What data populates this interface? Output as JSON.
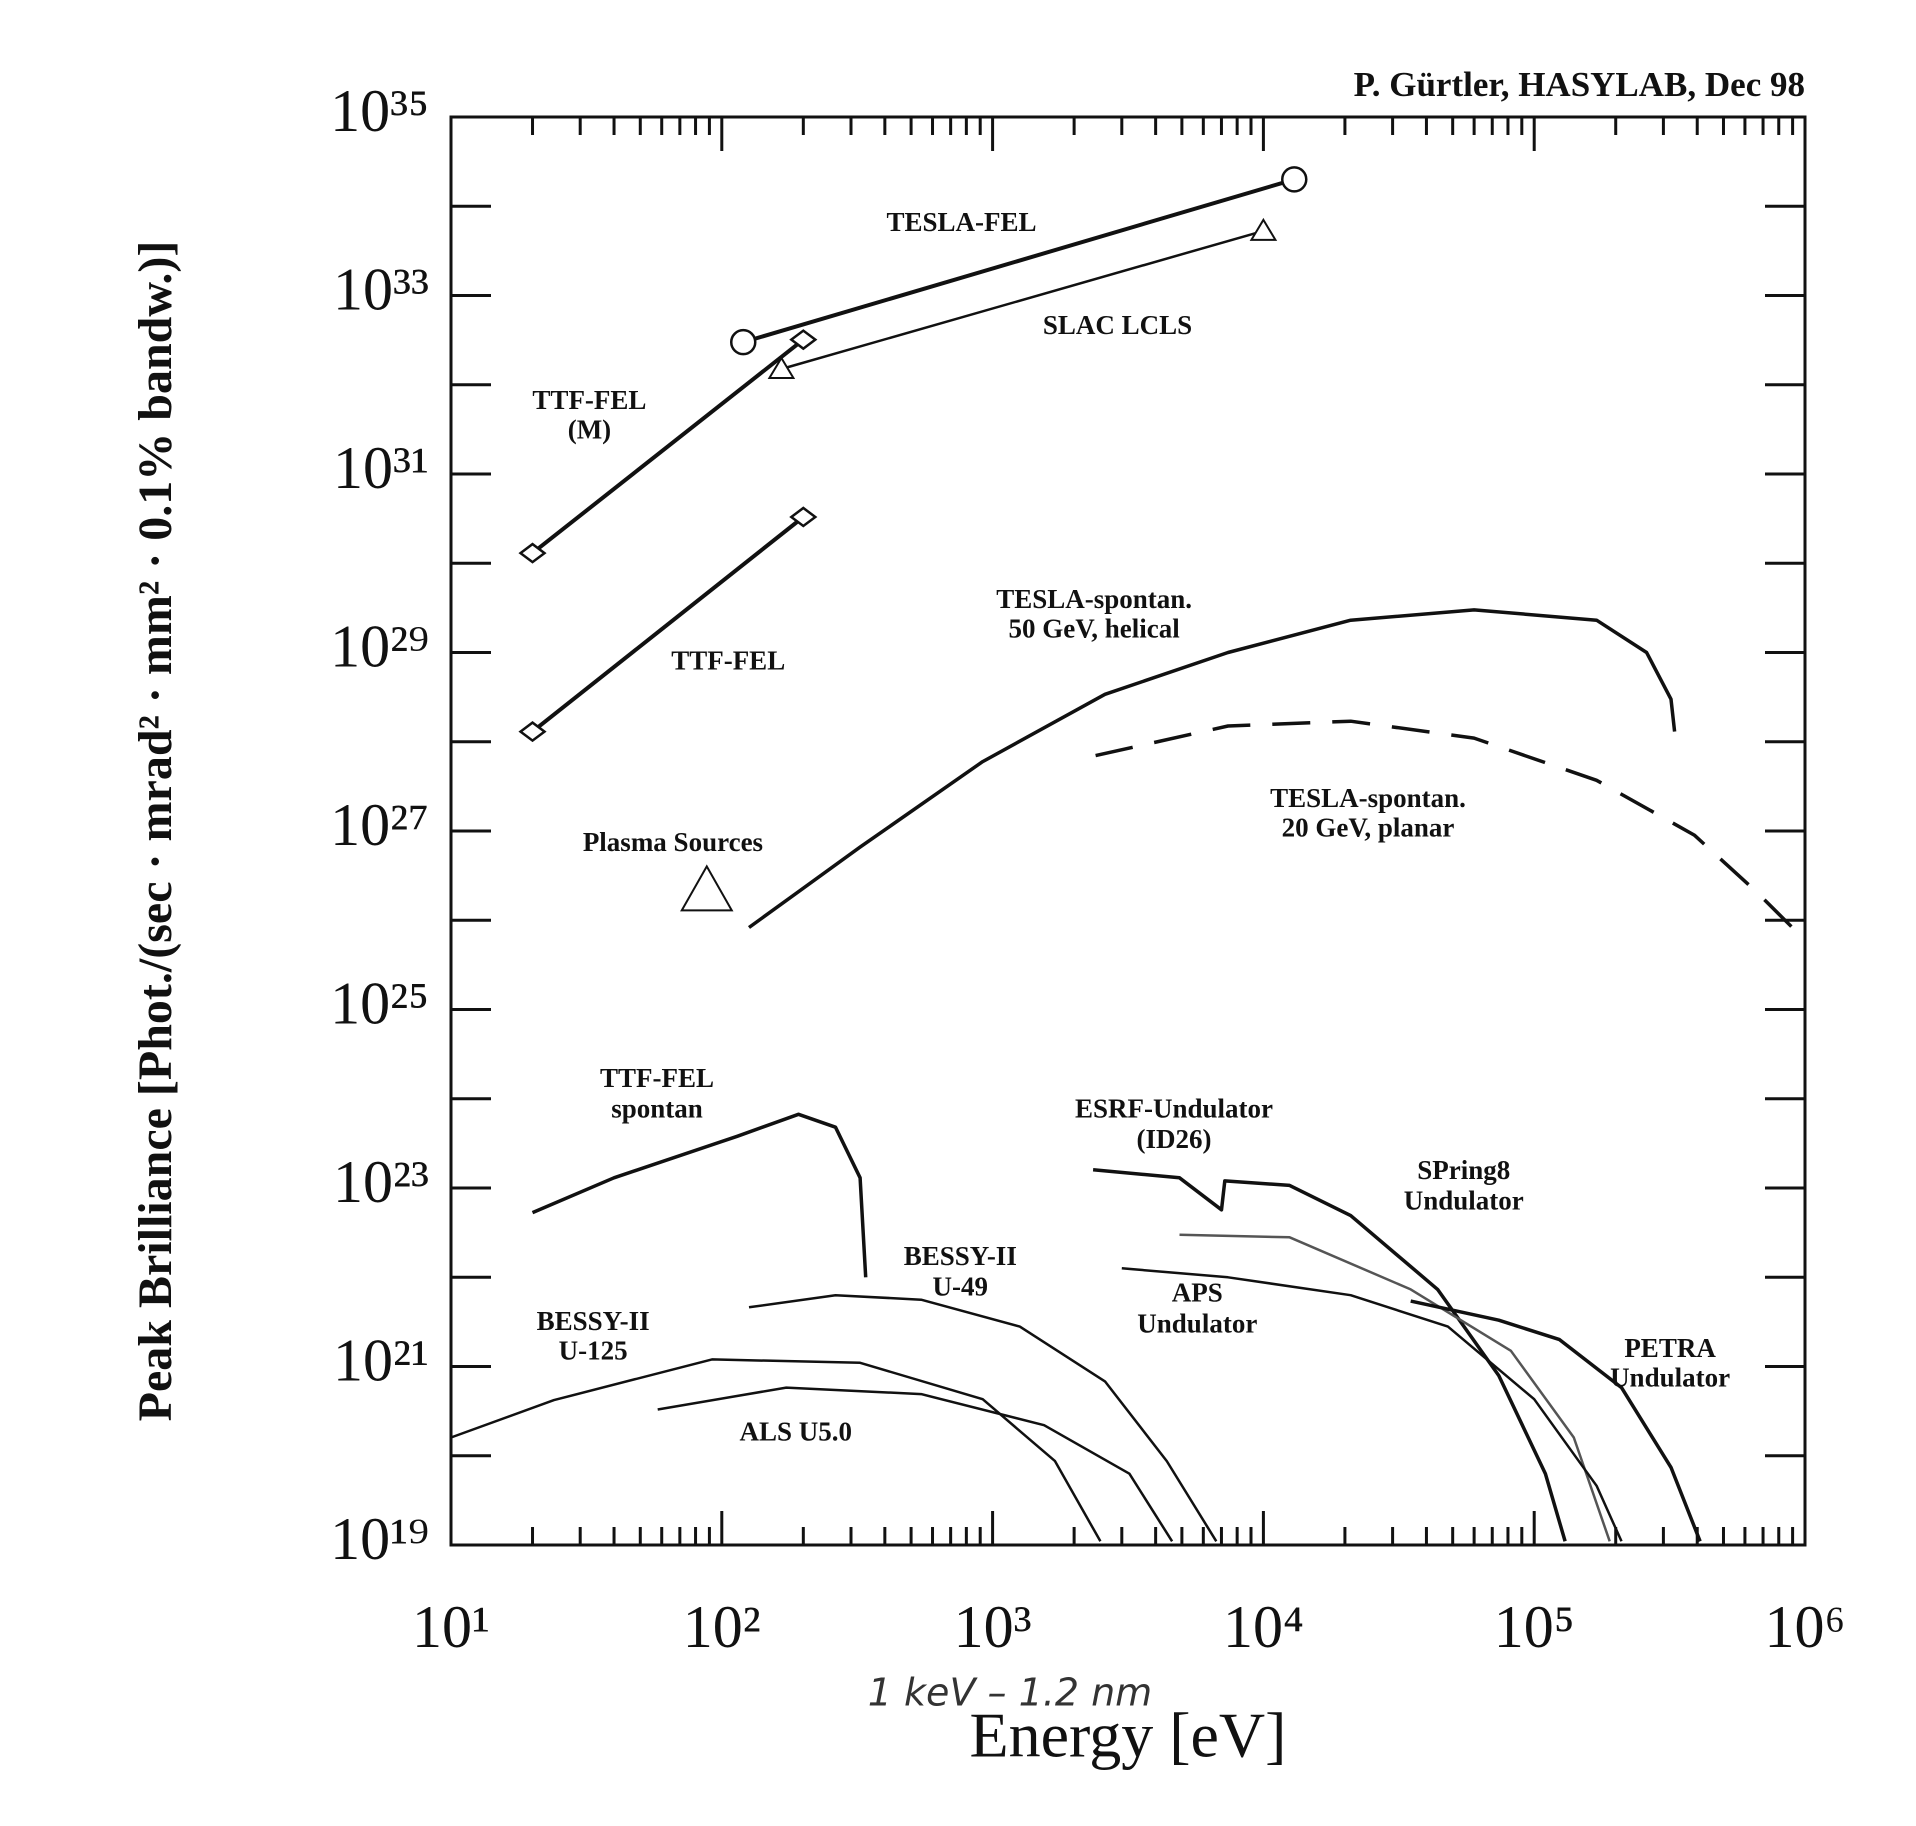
{
  "chart_data": {
    "type": "line",
    "log_x": true,
    "log_y": true,
    "credit": "P. Gürtler, HASYLAB, Dec 98",
    "y_label": "Peak Brilliance [Phot./(sec · mrad² · mm² · 0.1% bandw.)]",
    "x_label": "Energy [eV]",
    "handwritten_note": "1 keV – 1.2 nm",
    "xlim": [
      10,
      1000000
    ],
    "ylim": [
      1e+19,
      1e+35
    ],
    "xticks": [
      {
        "value": 10,
        "label": "10¹"
      },
      {
        "value": 100,
        "label": "10²"
      },
      {
        "value": 1000,
        "label": "10³"
      },
      {
        "value": 10000,
        "label": "10⁴"
      },
      {
        "value": 100000,
        "label": "10⁵"
      },
      {
        "value": 1000000,
        "label": "10⁶"
      }
    ],
    "xminorticks": [
      20,
      30,
      40,
      50,
      60,
      70,
      80,
      90,
      200,
      300,
      400,
      500,
      600,
      700,
      800,
      900,
      2000,
      3000,
      4000,
      5000,
      6000,
      7000,
      8000,
      9000,
      20000,
      30000,
      40000,
      50000,
      60000,
      70000,
      80000,
      90000,
      200000,
      300000,
      400000,
      500000,
      600000,
      700000,
      800000,
      900000
    ],
    "yticks": [
      {
        "value": 1e+19,
        "label": "10¹⁹"
      },
      {
        "value": 1e+21,
        "label": "10²¹"
      },
      {
        "value": 1e+23,
        "label": "10²³"
      },
      {
        "value": 1e+25,
        "label": "10²⁵"
      },
      {
        "value": 1e+27,
        "label": "10²⁷"
      },
      {
        "value": 1e+29,
        "label": "10²⁹"
      },
      {
        "value": 1e+31,
        "label": "10³¹"
      },
      {
        "value": 1e+33,
        "label": "10³³"
      },
      {
        "value": 1e+35,
        "label": "10³⁵"
      }
    ],
    "yminorticks": [
      1e+20,
      1e+22,
      1e+24,
      1e+26,
      1e+28,
      1e+30,
      1e+32,
      1e+34
    ],
    "series": [
      {
        "label": [
          "TESLA-FEL"
        ],
        "color": "#111",
        "line_width": 4,
        "marker": "circle",
        "x": [
          120,
          13000
        ],
        "values": [
          3e+32,
          2e+34
        ]
      },
      {
        "label": [
          "SLAC LCLS"
        ],
        "color": "#111",
        "line_width": 2.5,
        "marker": "triangle",
        "x": [
          166,
          10000
        ],
        "values": [
          1.5e+32,
          5.3e+33
        ]
      },
      {
        "label": [
          "TTF-FEL",
          "(M)"
        ],
        "color": "#111",
        "line_width": 4,
        "marker": "diamond",
        "x": [
          20,
          200
        ],
        "values": [
          1.3e+30,
          3.2e+32
        ]
      },
      {
        "label": [
          "TTF-FEL"
        ],
        "color": "#111",
        "line_width": 4,
        "marker": "diamond",
        "x": [
          20,
          200
        ],
        "values": [
          1.3e+28,
          3.3e+30
        ]
      },
      {
        "label": [
          "TESLA-spontan.",
          "50 GeV, helical"
        ],
        "color": "#111",
        "line_width": 3.5,
        "marker": "none",
        "x": [
          126,
          324,
          919,
          2600,
          7400,
          21000,
          60000,
          170000,
          260000,
          320000,
          330000
        ],
        "values": [
          8.3e+25,
          6.6e+26,
          6e+27,
          3.4e+28,
          1e+29,
          2.3e+29,
          3e+29,
          2.3e+29,
          1e+29,
          3e+28,
          1.3e+28
        ]
      },
      {
        "label": [
          "TESLA-spontan.",
          "20 GeV, planar"
        ],
        "color": "#111",
        "line_width": 3.5,
        "marker": "none",
        "dash": true,
        "x": [
          2400,
          7400,
          21000,
          60000,
          170000,
          390000,
          660000,
          1000000
        ],
        "values": [
          7e+27,
          1.5e+28,
          1.7e+28,
          1.1e+28,
          3.7e+27,
          9e+26,
          2.1e+26,
          6e+25
        ]
      },
      {
        "label": [
          "Plasma Sources"
        ],
        "color": "#111",
        "line_width": 2,
        "marker": "big-triangle",
        "x": [
          88
        ],
        "values": [
          2e+26
        ]
      },
      {
        "label": [
          "TTF-FEL",
          "spontan"
        ],
        "color": "#111",
        "line_width": 3.5,
        "marker": "none",
        "x": [
          20,
          40,
          114,
          192,
          263,
          324,
          340
        ],
        "values": [
          5.3e+22,
          1.3e+23,
          3.8e+23,
          6.7e+23,
          4.8e+23,
          1.3e+23,
          1e+22
        ]
      },
      {
        "label": [
          "ESRF-Undulator",
          "(ID26)"
        ],
        "color": "#111",
        "line_width": 3.5,
        "marker": "none",
        "x": [
          2350,
          4900,
          7000,
          7200,
          12500,
          21000,
          44000,
          74000,
          110000,
          130000
        ],
        "values": [
          1.6e+23,
          1.3e+23,
          5.7e+22,
          1.2e+23,
          1.07e+23,
          4.9e+22,
          7.3e+21,
          7.9e+20,
          6.3e+19,
          1.1e+19
        ]
      },
      {
        "label": [
          "SPring8",
          "Undulator"
        ],
        "color": "#555",
        "line_width": 2.5,
        "marker": "none",
        "x": [
          4900,
          12500,
          35000,
          82000,
          140000,
          190000
        ],
        "values": [
          3e+22,
          2.8e+22,
          7.3e+21,
          1.5e+21,
          1.6e+20,
          1.1e+19
        ]
      },
      {
        "label": [
          "BESSY-II",
          "U-49"
        ],
        "color": "#111",
        "line_width": 2.5,
        "marker": "none",
        "x": [
          126,
          263,
          545,
          1260,
          2600,
          4400,
          6700
        ],
        "values": [
          4.6e+21,
          6.3e+21,
          5.6e+21,
          2.8e+21,
          6.8e+20,
          8.7e+19,
          1.1e+19
        ]
      },
      {
        "label": [
          "APS",
          "Undulator"
        ],
        "color": "#111",
        "line_width": 2.5,
        "marker": "none",
        "x": [
          3000,
          7400,
          21000,
          48000,
          100000,
          170000,
          210000
        ],
        "values": [
          1.26e+22,
          1e+22,
          6.3e+21,
          2.8e+21,
          4.3e+20,
          4.6e+19,
          1.1e+19
        ]
      },
      {
        "label": [
          "BESSY-II",
          "U-125"
        ],
        "color": "#111",
        "line_width": 2.5,
        "marker": "none",
        "x": [
          10,
          24,
          92,
          324,
          919,
          1700,
          2500
        ],
        "values": [
          1.6e+20,
          4.2e+20,
          1.2e+21,
          1.1e+21,
          4.3e+20,
          8.7e+19,
          1.1e+19
        ]
      },
      {
        "label": [
          "PETRA",
          "Undulator"
        ],
        "color": "#111",
        "line_width": 3.5,
        "marker": "none",
        "x": [
          35000,
          74000,
          124000,
          210000,
          320000,
          410000
        ],
        "values": [
          5.4e+21,
          3.3e+21,
          2e+21,
          5.8e+20,
          7.4e+19,
          1.1e+19
        ]
      },
      {
        "label": [
          "ALS U5.0"
        ],
        "color": "#111",
        "line_width": 2.5,
        "marker": "none",
        "x": [
          58,
          173,
          545,
          1550,
          3200,
          4600
        ],
        "values": [
          3.3e+20,
          5.8e+20,
          4.9e+20,
          2.2e+20,
          6.3e+19,
          1.1e+19
        ]
      }
    ]
  }
}
